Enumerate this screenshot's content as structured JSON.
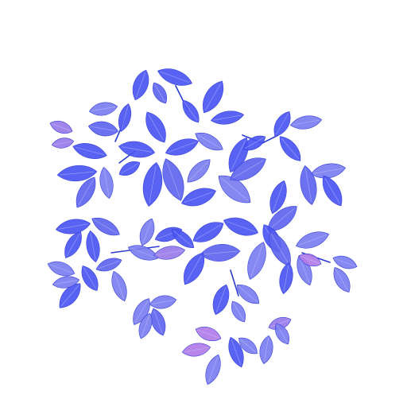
{
  "image": {
    "subject": "plant-foliage-top-view",
    "background_color": "#ffffff",
    "palette": {
      "leaf_blue": "#4a55f2",
      "leaf_mid": "#5f66ee",
      "leaf_light": "#7b7ef0",
      "leaf_violet": "#9a7be8",
      "leaf_pink": "#b27be8",
      "vein": "#c9ccff",
      "stem": "#2b3ccf"
    }
  }
}
